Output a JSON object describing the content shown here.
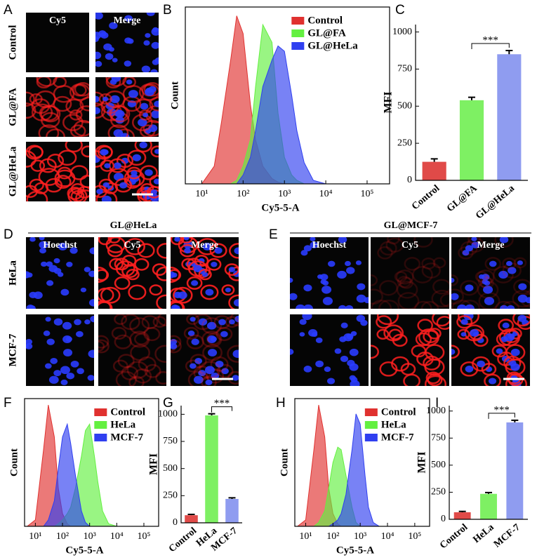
{
  "micrographs": [
    {
      "label": "A",
      "columns": [
        "Cy5",
        "Merge"
      ],
      "rows": [
        "Control",
        "GL@FA",
        "GL@HeLa"
      ]
    },
    {
      "label": "D",
      "title": "GL@HeLa",
      "columns": [
        "Hoechst",
        "Cy5",
        "Merge"
      ],
      "rows": [
        "HeLa",
        "MCF-7"
      ]
    },
    {
      "label": "E",
      "title": "GL@MCF-7",
      "columns": [
        "Hoechst",
        "Cy5",
        "Merge"
      ],
      "rows": [
        "HeLa",
        "MCF-7"
      ]
    }
  ],
  "chart_data": [
    {
      "label": "B",
      "type": "area",
      "xlabel": "Cy5-5-A",
      "ylabel": "Count",
      "log_x": true,
      "xlim": [
        4,
        350000
      ],
      "ylim": [
        0,
        100
      ],
      "xticks": [
        {
          "value": 10,
          "label": "10¹"
        },
        {
          "value": 100,
          "label": "10²"
        },
        {
          "value": 1000,
          "label": "10³"
        },
        {
          "value": 10000,
          "label": "10⁴"
        },
        {
          "value": 100000,
          "label": "10⁵"
        }
      ],
      "x": [
        5,
        10,
        20,
        30,
        50,
        70,
        100,
        150,
        200,
        300,
        500,
        700,
        1000,
        1500,
        2000,
        3000,
        5000,
        10000
      ],
      "series": [
        {
          "name": "Control",
          "color": "#e0312f",
          "values": [
            0,
            0,
            10,
            35,
            70,
            95,
            85,
            45,
            25,
            10,
            3,
            1,
            0,
            0,
            0,
            0,
            0,
            0
          ]
        },
        {
          "name": "GL@FA",
          "color": "#63f040",
          "values": [
            0,
            0,
            0,
            0,
            0,
            2,
            10,
            25,
            55,
            90,
            80,
            40,
            15,
            5,
            2,
            0,
            0,
            0
          ]
        },
        {
          "name": "GL@HeLa",
          "color": "#2f3ff0",
          "values": [
            0,
            0,
            0,
            0,
            0,
            0,
            5,
            15,
            30,
            55,
            70,
            78,
            75,
            50,
            30,
            12,
            2,
            0
          ]
        }
      ],
      "legend": "top-right"
    },
    {
      "label": "C",
      "type": "bar",
      "ylabel": "MFI",
      "ylim": [
        0,
        1050
      ],
      "yticks": [
        0,
        250,
        500,
        750,
        1000
      ],
      "categories": [
        "Control",
        "GL@FA",
        "GL@HeLa"
      ],
      "values": [
        125,
        540,
        850
      ],
      "errors": [
        20,
        20,
        25
      ],
      "colors": [
        "#e04a48",
        "#7ef063",
        "#8f9cf0"
      ],
      "annotations": [
        "***"
      ]
    },
    {
      "label": "F",
      "type": "area",
      "xlabel": "Cy5-5-A",
      "ylabel": "Count",
      "log_x": true,
      "xlim": [
        4,
        350000
      ],
      "ylim": [
        0,
        100
      ],
      "xticks": [
        {
          "value": 10,
          "label": "10¹"
        },
        {
          "value": 100,
          "label": "10²"
        },
        {
          "value": 1000,
          "label": "10³"
        },
        {
          "value": 10000,
          "label": "10⁴"
        },
        {
          "value": 100000,
          "label": "10⁵"
        }
      ],
      "x": [
        5,
        10,
        20,
        30,
        50,
        70,
        100,
        150,
        200,
        300,
        500,
        700,
        1000,
        1500,
        2000,
        3000,
        5000,
        10000
      ],
      "series": [
        {
          "name": "Control",
          "color": "#e0312f",
          "values": [
            0,
            5,
            60,
            95,
            70,
            30,
            10,
            2,
            0,
            0,
            0,
            0,
            0,
            0,
            0,
            0,
            0,
            0
          ]
        },
        {
          "name": "HeLa",
          "color": "#63f040",
          "values": [
            0,
            0,
            0,
            0,
            0,
            2,
            5,
            10,
            15,
            30,
            55,
            75,
            80,
            55,
            35,
            12,
            2,
            0
          ]
        },
        {
          "name": "MCF-7",
          "color": "#2f3ff0",
          "values": [
            0,
            0,
            0,
            5,
            20,
            45,
            70,
            80,
            65,
            40,
            12,
            3,
            0,
            0,
            0,
            0,
            0,
            0
          ]
        }
      ],
      "legend": "top-right"
    },
    {
      "label": "G",
      "type": "bar",
      "ylabel": "MFI",
      "ylim": [
        0,
        1080
      ],
      "yticks": [
        0,
        250,
        500,
        750,
        1000
      ],
      "categories": [
        "Control",
        "HeLa",
        "MCF-7"
      ],
      "values": [
        70,
        990,
        220
      ],
      "errors": [
        8,
        15,
        10
      ],
      "colors": [
        "#e04a48",
        "#7ef063",
        "#8f9cf0"
      ],
      "annotations": [
        "***"
      ]
    },
    {
      "label": "H",
      "type": "area",
      "xlabel": "Cy5-5-A",
      "ylabel": "Count",
      "log_x": true,
      "xlim": [
        4,
        350000
      ],
      "ylim": [
        0,
        100
      ],
      "xticks": [
        {
          "value": 10,
          "label": "10¹"
        },
        {
          "value": 100,
          "label": "10²"
        },
        {
          "value": 1000,
          "label": "10³"
        },
        {
          "value": 10000,
          "label": "10⁴"
        },
        {
          "value": 100000,
          "label": "10⁵"
        }
      ],
      "x": [
        5,
        10,
        20,
        30,
        50,
        70,
        100,
        150,
        200,
        300,
        500,
        700,
        1000,
        1500,
        2000,
        3000,
        5000,
        10000
      ],
      "series": [
        {
          "name": "Control",
          "color": "#e0312f",
          "values": [
            0,
            5,
            60,
            95,
            70,
            30,
            10,
            2,
            0,
            0,
            0,
            0,
            0,
            0,
            0,
            0,
            0,
            0
          ]
        },
        {
          "name": "HeLa",
          "color": "#63f040",
          "values": [
            0,
            0,
            0,
            3,
            12,
            30,
            50,
            62,
            60,
            40,
            15,
            3,
            0,
            0,
            0,
            0,
            0,
            0
          ]
        },
        {
          "name": "MCF-7",
          "color": "#2f3ff0",
          "values": [
            0,
            0,
            0,
            0,
            0,
            0,
            2,
            5,
            10,
            25,
            60,
            88,
            80,
            40,
            15,
            3,
            0,
            0
          ]
        }
      ],
      "legend": "top-right"
    },
    {
      "label": "I",
      "type": "bar",
      "ylabel": "MFI",
      "ylim": [
        0,
        1050
      ],
      "yticks": [
        0,
        250,
        500,
        750,
        1000
      ],
      "categories": [
        "Control",
        "HeLa",
        "MCF-7"
      ],
      "values": [
        65,
        235,
        895
      ],
      "errors": [
        8,
        12,
        20
      ],
      "colors": [
        "#e04a48",
        "#7ef063",
        "#8f9cf0"
      ],
      "annotations": [
        "***"
      ]
    }
  ]
}
